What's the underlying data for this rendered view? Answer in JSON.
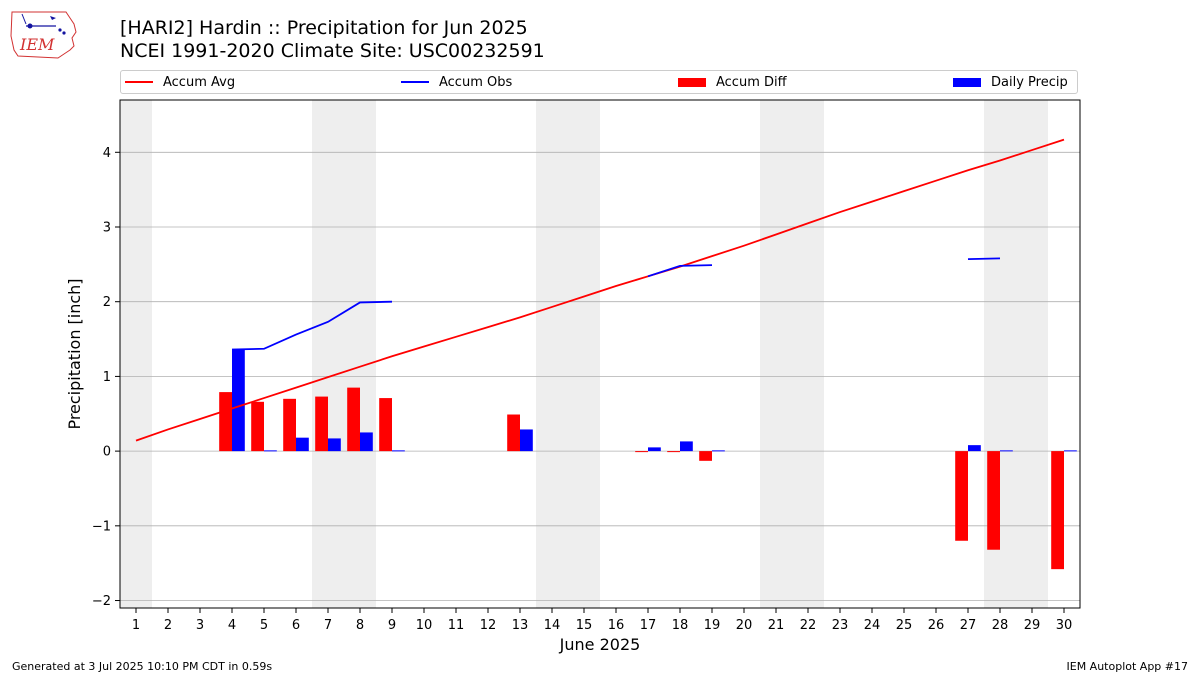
{
  "header": {
    "title_line1": "[HARI2] Hardin :: Precipitation for Jun 2025",
    "title_line2": "NCEI 1991-2020 Climate Site: USC00232591",
    "logo_text": "IEM"
  },
  "legend": {
    "items": [
      {
        "label": "Accum Avg",
        "color": "#ff0000",
        "kind": "line"
      },
      {
        "label": "Accum Obs",
        "color": "#0000ff",
        "kind": "line"
      },
      {
        "label": "Accum Diff",
        "color": "#ff0000",
        "kind": "bar"
      },
      {
        "label": "Daily Precip",
        "color": "#0000ff",
        "kind": "bar"
      }
    ]
  },
  "footer": {
    "left": "Generated at 3 Jul 2025 10:10 PM CDT in 0.59s",
    "right": "IEM Autoplot App #17"
  },
  "chart_data": {
    "type": "bar",
    "xlabel": "June 2025",
    "ylabel": "Precipitation [inch]",
    "xlim": [
      0.5,
      30.5
    ],
    "ylim": [
      -2.1,
      4.7
    ],
    "yticks": [
      -2,
      -1,
      0,
      1,
      2,
      3,
      4
    ],
    "ytick_labels": [
      "−2",
      "−1",
      "0",
      "1",
      "2",
      "3",
      "4"
    ],
    "x": [
      1,
      2,
      3,
      4,
      5,
      6,
      7,
      8,
      9,
      10,
      11,
      12,
      13,
      14,
      15,
      16,
      17,
      18,
      19,
      20,
      21,
      22,
      23,
      24,
      25,
      26,
      27,
      28,
      29,
      30
    ],
    "weekend_shading": [
      [
        0.5,
        1.5
      ],
      [
        6.5,
        8.5
      ],
      [
        13.5,
        15.5
      ],
      [
        20.5,
        22.5
      ],
      [
        27.5,
        29.5
      ]
    ],
    "grid": "y",
    "colors": {
      "avg": "#ff0000",
      "obs": "#0000ff",
      "diff": "#ff0000",
      "daily": "#0000ff",
      "weekend": "#eeeeee",
      "grid": "#b0b0b0"
    },
    "series": [
      {
        "name": "Accum Avg",
        "type": "line",
        "values": [
          0.14,
          0.29,
          0.43,
          0.57,
          0.71,
          0.85,
          0.99,
          1.13,
          1.27,
          1.4,
          1.53,
          1.66,
          1.79,
          1.93,
          2.07,
          2.21,
          2.34,
          2.47,
          2.61,
          2.75,
          2.9,
          3.05,
          3.2,
          3.34,
          3.48,
          3.62,
          3.76,
          3.89,
          4.03,
          4.17
        ]
      },
      {
        "name": "Accum Obs",
        "type": "line",
        "values": [
          null,
          null,
          null,
          1.36,
          1.37,
          1.56,
          1.73,
          1.99,
          2.0,
          null,
          null,
          null,
          null,
          null,
          null,
          null,
          2.34,
          2.48,
          2.49,
          null,
          null,
          null,
          null,
          null,
          null,
          null,
          2.57,
          2.58,
          null,
          null
        ]
      },
      {
        "name": "Accum Diff",
        "type": "bar",
        "values": [
          null,
          null,
          null,
          0.79,
          0.66,
          0.7,
          0.73,
          0.85,
          0.71,
          null,
          null,
          null,
          0.49,
          null,
          null,
          null,
          -0.01,
          0.0,
          -0.13,
          null,
          null,
          null,
          null,
          null,
          null,
          null,
          -1.2,
          -1.32,
          null,
          -1.58
        ]
      },
      {
        "name": "Daily Precip",
        "type": "bar",
        "values": [
          null,
          null,
          null,
          1.36,
          0.01,
          0.18,
          0.17,
          0.25,
          0.01,
          null,
          null,
          null,
          0.29,
          null,
          null,
          null,
          0.05,
          0.13,
          0.01,
          null,
          null,
          null,
          null,
          null,
          null,
          null,
          0.08,
          0.01,
          null,
          0.01
        ]
      }
    ]
  }
}
